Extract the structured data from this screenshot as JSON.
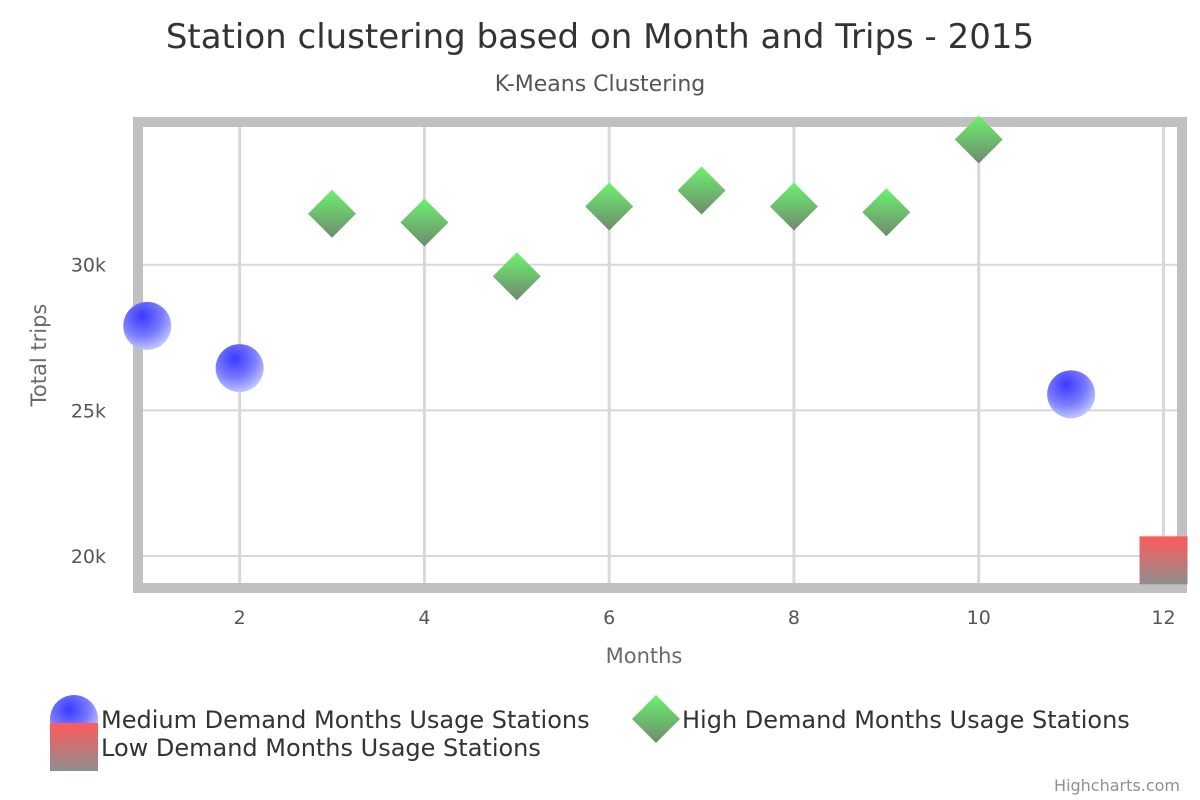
{
  "chart_data": {
    "type": "scatter",
    "title": "Station clustering based on Month and Trips - 2015",
    "subtitle": "K-Means Clustering",
    "xlabel": "Months",
    "ylabel": "Total trips",
    "xlim": [
      0.9,
      12.2
    ],
    "ylim": [
      18900,
      34900
    ],
    "x_ticks": [
      2,
      4,
      6,
      8,
      10,
      12
    ],
    "x_tick_labels": [
      "2",
      "4",
      "6",
      "8",
      "10",
      "12"
    ],
    "y_ticks": [
      20000,
      25000,
      30000
    ],
    "y_tick_labels": [
      "20k",
      "25k",
      "30k"
    ],
    "grid": true,
    "legend_position": "bottom",
    "series": [
      {
        "name": "Medium Demand Months Usage Stations",
        "marker": "circle",
        "color": "#5b5bff",
        "points": [
          {
            "x": 1,
            "y": 27900
          },
          {
            "x": 2,
            "y": 26450
          },
          {
            "x": 11,
            "y": 25550
          }
        ]
      },
      {
        "name": "High Demand Months Usage Stations",
        "marker": "diamond",
        "color": "#3fd63f",
        "points": [
          {
            "x": 3,
            "y": 31750
          },
          {
            "x": 4,
            "y": 31450
          },
          {
            "x": 5,
            "y": 29600
          },
          {
            "x": 6,
            "y": 32000
          },
          {
            "x": 7,
            "y": 32550
          },
          {
            "x": 8,
            "y": 32000
          },
          {
            "x": 9,
            "y": 31800
          },
          {
            "x": 10,
            "y": 34300
          }
        ]
      },
      {
        "name": "Low Demand Months Usage Stations",
        "marker": "square",
        "color": "#ff6b6b",
        "points": [
          {
            "x": 12,
            "y": 19850
          }
        ]
      }
    ]
  },
  "credits": "Highcharts.com"
}
